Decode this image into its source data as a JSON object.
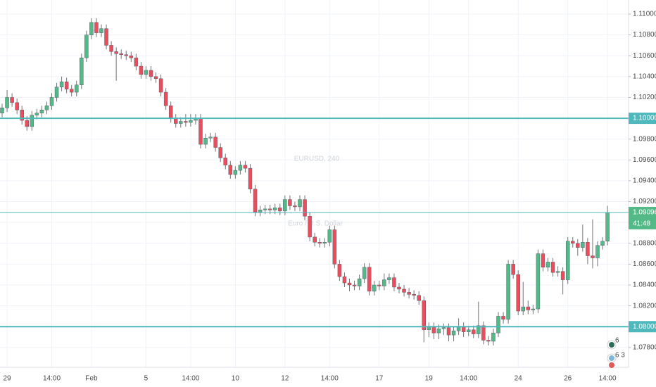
{
  "chart_data": {
    "type": "candlestick",
    "watermark": "EURUSD, 240",
    "watermark_subtitle": "Euro / U.S. Dollar",
    "categories": [
      null,
      "29",
      null,
      null,
      null,
      null,
      null,
      null,
      null,
      null,
      "14:00",
      null,
      null,
      null,
      null,
      null,
      null,
      null,
      "Feb",
      null,
      null,
      null,
      null,
      null,
      null,
      null,
      null,
      null,
      null,
      "5",
      null,
      null,
      null,
      null,
      null,
      null,
      null,
      null,
      "14:00",
      null,
      null,
      null,
      null,
      null,
      null,
      null,
      null,
      "10",
      null,
      null,
      null,
      null,
      null,
      null,
      null,
      null,
      null,
      "12",
      null,
      null,
      null,
      null,
      null,
      null,
      null,
      null,
      "14:00",
      null,
      null,
      null,
      null,
      null,
      null,
      null,
      null,
      null,
      "17",
      null,
      null,
      null,
      null,
      null,
      null,
      null,
      null,
      null,
      "19",
      null,
      null,
      null,
      null,
      null,
      null,
      null,
      "14:00",
      null,
      null,
      null,
      null,
      null,
      null,
      null,
      null,
      null,
      "24",
      null,
      null,
      null,
      null,
      null,
      null,
      null,
      null,
      null,
      "26",
      null,
      null,
      null,
      null,
      null,
      null,
      null,
      "14:00"
    ],
    "open": [
      1.1005,
      1.101,
      1.102,
      1.1015,
      1.1008,
      1.0998,
      1.0992,
      1.1003,
      1.1005,
      1.1008,
      1.1012,
      1.102,
      1.103,
      1.1035,
      1.1028,
      1.1025,
      1.1032,
      1.1058,
      1.108,
      1.1092,
      1.1082,
      1.1086,
      1.107,
      1.1064,
      1.1062,
      1.1061,
      1.106,
      1.1058,
      1.105,
      1.1042,
      1.1046,
      1.104,
      1.1038,
      1.1025,
      1.1012,
      1.1,
      1.0995,
      1.0997,
      1.0996,
      1.0998,
      1.1,
      1.0975,
      1.0981,
      1.0982,
      1.0972,
      1.0962,
      1.0955,
      1.0946,
      1.095,
      1.0955,
      1.0952,
      1.0932,
      1.091,
      1.0912,
      1.0913,
      1.0912,
      1.0914,
      1.0911,
      1.0922,
      1.0916,
      1.0915,
      1.0922,
      1.0906,
      1.0886,
      1.0881,
      1.088,
      1.0881,
      1.0893,
      1.086,
      1.0848,
      1.0842,
      1.084,
      1.0839,
      1.0846,
      1.0857,
      1.0834,
      1.084,
      1.0839,
      1.0845,
      1.0847,
      1.0838,
      1.0836,
      1.0833,
      1.0831,
      1.083,
      1.0825,
      1.0797,
      1.08,
      1.0794,
      1.0798,
      1.0799,
      1.0792,
      1.0796,
      1.08,
      1.0795,
      1.0797,
      1.0793,
      1.0801,
      1.0787,
      1.0786,
      1.0794,
      1.081,
      1.0807,
      1.086,
      1.085,
      1.0815,
      1.0819,
      1.0816,
      1.0817,
      1.087,
      1.0857,
      1.0862,
      1.0852,
      1.0853,
      1.0845,
      1.0882,
      1.088,
      1.0876,
      1.0881,
      1.0868,
      1.0866,
      1.0878,
      1.0882
    ],
    "high": [
      1.1014,
      1.1027,
      1.1024,
      1.1019,
      1.1012,
      1.1002,
      1.1007,
      1.1009,
      1.1012,
      1.1016,
      1.1024,
      1.1034,
      1.104,
      1.1039,
      1.1032,
      1.1036,
      1.1062,
      1.1084,
      1.1096,
      1.1096,
      1.109,
      1.109,
      1.1074,
      1.1068,
      1.1066,
      1.1065,
      1.1064,
      1.1062,
      1.1054,
      1.105,
      1.105,
      1.1044,
      1.1042,
      1.1029,
      1.1016,
      1.1004,
      1.1001,
      1.1004,
      1.1004,
      1.1004,
      1.1004,
      1.0985,
      1.0986,
      1.0986,
      1.0976,
      1.0966,
      1.0959,
      1.0954,
      1.0959,
      1.0959,
      1.0956,
      1.0936,
      1.0916,
      1.0917,
      1.0917,
      1.0918,
      1.0918,
      1.0926,
      1.0926,
      1.092,
      1.0926,
      1.0926,
      1.091,
      1.089,
      1.0885,
      1.0885,
      1.0897,
      1.0897,
      1.0864,
      1.0852,
      1.0846,
      1.0844,
      1.085,
      1.0861,
      1.0861,
      1.0844,
      1.0844,
      1.0851,
      1.0851,
      1.0851,
      1.0842,
      1.084,
      1.0837,
      1.0835,
      1.0834,
      1.0829,
      1.0804,
      1.0804,
      1.0802,
      1.0803,
      1.0803,
      1.08,
      1.0808,
      1.0804,
      1.0801,
      1.0801,
      1.0824,
      1.0805,
      1.0791,
      1.0798,
      1.0814,
      1.0814,
      1.0864,
      1.0864,
      1.0854,
      1.0843,
      1.0825,
      1.0821,
      1.0874,
      1.0874,
      1.0866,
      1.0866,
      1.0858,
      1.0857,
      1.0886,
      1.0886,
      1.0884,
      1.0898,
      1.0885,
      1.0903,
      1.0882,
      1.0886,
      1.0916
    ],
    "low": [
      1.1001,
      1.1006,
      1.1011,
      1.1004,
      1.0994,
      1.0988,
      1.0988,
      1.0999,
      1.1001,
      1.1004,
      1.1008,
      1.1016,
      1.1026,
      1.1024,
      1.1021,
      1.1021,
      1.1028,
      1.1054,
      1.1076,
      1.1078,
      1.1078,
      1.1066,
      1.106,
      1.1036,
      1.1057,
      1.1056,
      1.1054,
      1.1046,
      1.1038,
      1.1038,
      1.1036,
      1.1034,
      1.1021,
      1.1008,
      1.0996,
      1.0991,
      1.0991,
      1.0992,
      1.0992,
      1.0994,
      1.0971,
      1.0971,
      1.0977,
      1.0968,
      1.0958,
      1.0951,
      1.0942,
      1.0942,
      1.0946,
      1.0948,
      1.0928,
      1.0906,
      1.0906,
      1.0908,
      1.0908,
      1.0908,
      1.0907,
      1.0907,
      1.0912,
      1.0911,
      1.0911,
      1.0902,
      1.0882,
      1.0877,
      1.0876,
      1.0876,
      1.0877,
      1.0856,
      1.0844,
      1.0838,
      1.0834,
      1.0835,
      1.0835,
      1.0842,
      1.083,
      1.083,
      1.0835,
      1.0835,
      1.0841,
      1.0834,
      1.0832,
      1.0829,
      1.0827,
      1.0826,
      1.0821,
      1.0785,
      1.079,
      1.0788,
      1.0788,
      1.0792,
      1.0786,
      1.0786,
      1.0792,
      1.079,
      1.0791,
      1.0789,
      1.0789,
      1.0783,
      1.0782,
      1.0782,
      1.079,
      1.0803,
      1.0803,
      1.0846,
      1.0811,
      1.0811,
      1.0812,
      1.0812,
      1.0813,
      1.0853,
      1.0853,
      1.0848,
      1.0848,
      1.0831,
      1.0841,
      1.0876,
      1.0868,
      1.0872,
      1.086,
      1.0856,
      1.0858,
      1.0874,
      1.0878
    ],
    "close": [
      1.101,
      1.102,
      1.1015,
      1.1008,
      1.0998,
      1.0992,
      1.1003,
      1.1005,
      1.1008,
      1.1012,
      1.102,
      1.103,
      1.1035,
      1.1028,
      1.1025,
      1.1032,
      1.1058,
      1.108,
      1.1092,
      1.1082,
      1.1086,
      1.107,
      1.1064,
      1.1062,
      1.1061,
      1.106,
      1.1058,
      1.105,
      1.1042,
      1.1046,
      1.104,
      1.1038,
      1.1025,
      1.1012,
      1.1,
      1.0995,
      1.0997,
      1.0996,
      1.0998,
      1.1,
      1.0975,
      1.0981,
      1.0982,
      1.0972,
      1.0962,
      1.0955,
      1.0946,
      1.095,
      1.0955,
      1.0952,
      1.0932,
      1.091,
      1.0912,
      1.0913,
      1.0912,
      1.0914,
      1.0911,
      1.0922,
      1.0916,
      1.0915,
      1.0922,
      1.0906,
      1.0886,
      1.0881,
      1.088,
      1.0881,
      1.0893,
      1.086,
      1.0848,
      1.0842,
      1.084,
      1.0839,
      1.0846,
      1.0857,
      1.0834,
      1.084,
      1.0839,
      1.0845,
      1.0847,
      1.0838,
      1.0836,
      1.0833,
      1.0831,
      1.083,
      1.0825,
      1.0797,
      1.08,
      1.0794,
      1.0798,
      1.0799,
      1.0792,
      1.0796,
      1.08,
      1.0795,
      1.0797,
      1.0793,
      1.0801,
      1.0787,
      1.0786,
      1.0794,
      1.081,
      1.0807,
      1.086,
      1.085,
      1.0815,
      1.0819,
      1.0816,
      1.0817,
      1.087,
      1.0857,
      1.0862,
      1.0852,
      1.0853,
      1.0845,
      1.0882,
      1.088,
      1.0876,
      1.0881,
      1.0868,
      1.0866,
      1.0878,
      1.0882,
      1.09096
    ],
    "up_color": "#53b987",
    "down_color": "#eb4d5c",
    "ylim": [
      1.0761,
      1.11135
    ],
    "yticks": [
      {
        "value": 1.11,
        "label": "1.11000"
      },
      {
        "value": 1.108,
        "label": "1.10800"
      },
      {
        "value": 1.106,
        "label": "1.10600"
      },
      {
        "value": 1.104,
        "label": "1.10400"
      },
      {
        "value": 1.102,
        "label": "1.10200"
      },
      {
        "value": 1.1,
        "label": "1.10000"
      },
      {
        "value": 1.098,
        "label": "1.09800"
      },
      {
        "value": 1.096,
        "label": "1.09600"
      },
      {
        "value": 1.094,
        "label": "1.09400"
      },
      {
        "value": 1.092,
        "label": "1.09200"
      },
      {
        "value": 1.09,
        "label": "1.09000"
      },
      {
        "value": 1.088,
        "label": "1.08800"
      },
      {
        "value": 1.086,
        "label": "1.08600"
      },
      {
        "value": 1.084,
        "label": "1.08400"
      },
      {
        "value": 1.082,
        "label": "1.08200"
      },
      {
        "value": 1.08,
        "label": "1.08000"
      },
      {
        "value": 1.078,
        "label": "1.07800"
      }
    ],
    "grid": true,
    "hlines": [
      {
        "value": 1.1,
        "label": "1.10000"
      },
      {
        "value": 1.08,
        "label": "1.08000"
      }
    ],
    "hline_color": "#4fb8bd",
    "last_price": {
      "value": 1.09096,
      "label": "1.09096"
    },
    "countdown": "41:48",
    "badges": [
      "6",
      "6 3"
    ]
  }
}
